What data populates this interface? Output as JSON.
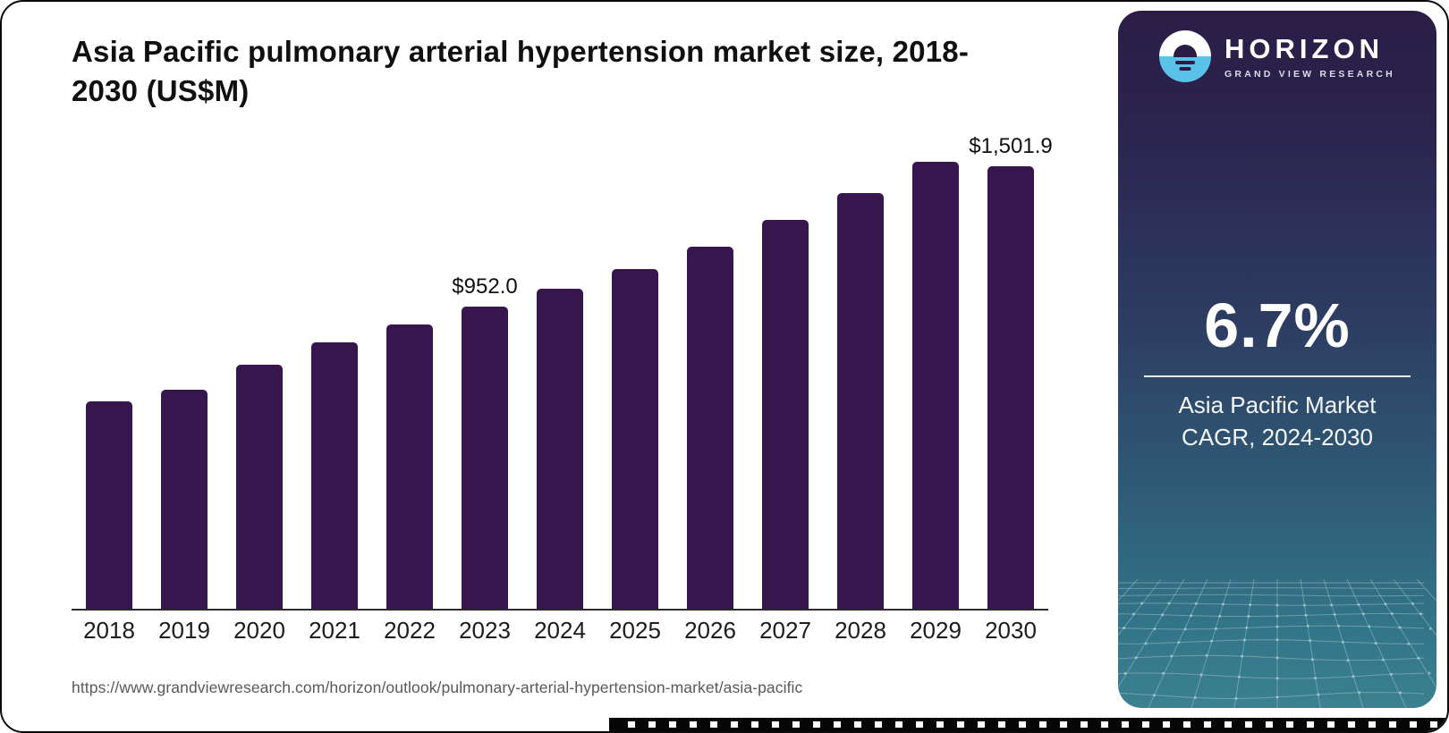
{
  "header": {
    "title": "Asia Pacific pulmonary arterial hypertension market size, 2018-2030 (US$M)"
  },
  "chart_data": {
    "type": "bar",
    "title": "Asia Pacific pulmonary arterial hypertension market size, 2018-2030 (US$M)",
    "categories": [
      "2018",
      "2019",
      "2020",
      "2021",
      "2022",
      "2023",
      "2024",
      "2025",
      "2026",
      "2027",
      "2028",
      "2029",
      "2030"
    ],
    "values": [
      655,
      690,
      770,
      840,
      895,
      952.0,
      1010,
      1070,
      1140,
      1225,
      1310,
      1410,
      1501.9
    ],
    "bar_labels": [
      "",
      "",
      "",
      "",
      "",
      "$952.0",
      "",
      "",
      "",
      "",
      "",
      "",
      "$1,501.9"
    ],
    "bar_color": "#36164C",
    "xlabel": "",
    "ylabel": "",
    "ylim": [
      0,
      1600
    ],
    "grid": "off",
    "legend": "none",
    "axis_line_color": "#2b2b2b"
  },
  "footer": {
    "source_url": "https://www.grandviewresearch.com/horizon/outlook/pulmonary-arterial-hypertension-market/asia-pacific"
  },
  "sidebar": {
    "brand": {
      "name": "HORIZON",
      "tagline": "GRAND VIEW RESEARCH"
    },
    "stat": {
      "value": "6.7%",
      "caption_line1": "Asia Pacific Market",
      "caption_line2": "CAGR, 2024-2030"
    },
    "colors": {
      "gradient_top": "#2a1d45",
      "gradient_bottom": "#3b8191",
      "logo_blue": "#5bc2e7",
      "mesh_line": "#b9d4da"
    }
  }
}
